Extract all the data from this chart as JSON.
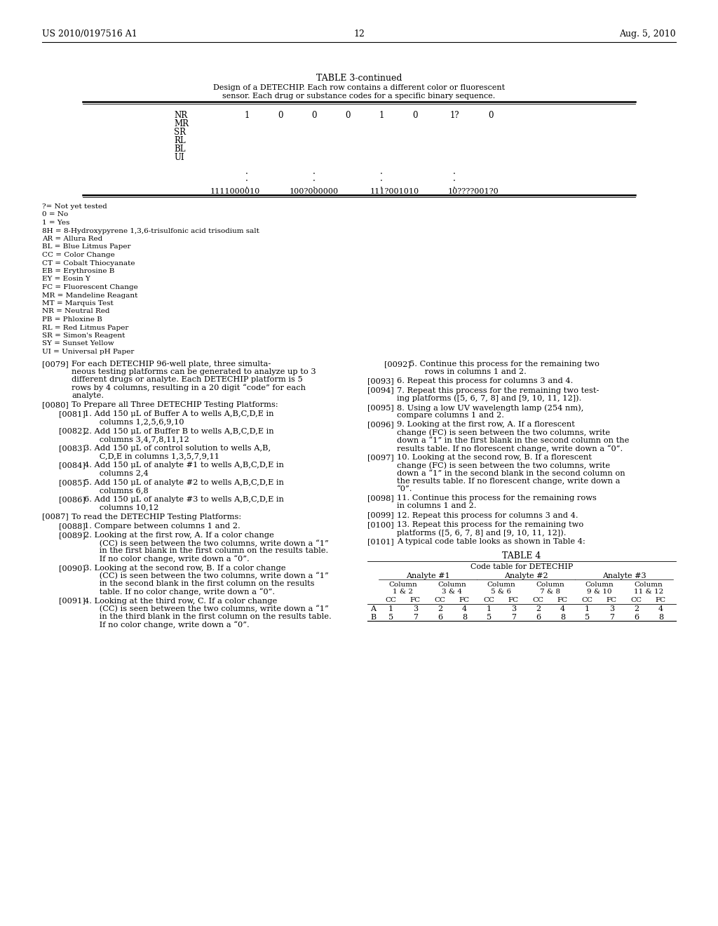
{
  "bg_color": "#ffffff",
  "header_left": "US 2010/0197516 A1",
  "header_right": "Aug. 5, 2010",
  "page_number": "12",
  "table_title": "TABLE 3-continued",
  "table_subtitle1": "Design of a DETECHIP. Each row contains a different color or fluorescent",
  "table_subtitle2": "sensor. Each drug or substance codes for a specific binary sequence.",
  "table_row_labels": [
    "NR",
    "MR",
    "SR",
    "RL",
    "BL",
    "UI"
  ],
  "table_nr_values": [
    "1",
    "0",
    "0",
    "0",
    "1",
    "0",
    "1?",
    "0"
  ],
  "table_binary_codes": [
    "1111000010",
    "100?000000",
    "111?001010",
    "10????001?0"
  ],
  "footnotes": [
    "?= Not yet tested",
    "0 = No",
    "1 = Yes",
    "8H = 8-Hydroxypyrene 1,3,6-trisulfonic acid trisodium salt",
    "AR = Allura Red",
    "BL = Blue Litmus Paper",
    "CC = Color Change",
    "CT = Cobalt Thiocyanate",
    "EB = Erythrosine B",
    "EY = Eosin Y",
    "FC = Fluorescent Change",
    "MR = Mandeline Reagant",
    "MT = Marquis Test",
    "NR = Neutral Red",
    "PB = Phloxine B",
    "RL = Red Litmus Paper",
    "SR = Simon's Reagent",
    "SY = Sunset Yellow",
    "UI = Universal pH Paper"
  ],
  "left_paragraphs": [
    {
      "tag": "[0079]",
      "indent": 0,
      "text": "For each DETECHIP 96-well plate, three simulta-\nneous testing platforms can be generated to analyze up to 3\ndifferent drugs or analyte. Each DETECHIP platform is 5\nrows by 4 columns, resulting in a 20 digit “code” for each\nanalyte."
    },
    {
      "tag": "[0080]",
      "indent": 0,
      "text": "To Prepare all Three DETECHIP Testing Platforms:"
    },
    {
      "tag": "[0081]",
      "indent": 1,
      "text": "1. Add 150 μL of Buffer A to wells A,B,C,D,E in\n      columns 1,2,5,6,9,10"
    },
    {
      "tag": "[0082]",
      "indent": 1,
      "text": "2. Add 150 μL of Buffer B to wells A,B,C,D,E in\n      columns 3,4,7,8,11,12"
    },
    {
      "tag": "[0083]",
      "indent": 1,
      "text": "3. Add 150 μL of control solution to wells A,B,\n      C,D,E in columns 1,3,5,7,9,11"
    },
    {
      "tag": "[0084]",
      "indent": 1,
      "text": "4. Add 150 μL of analyte #1 to wells A,B,C,D,E in\n      columns 2,4"
    },
    {
      "tag": "[0085]",
      "indent": 1,
      "text": "5. Add 150 μL of analyte #2 to wells A,B,C,D,E in\n      columns 6,8"
    },
    {
      "tag": "[0086]",
      "indent": 1,
      "text": "6. Add 150 μL of analyte #3 to wells A,B,C,D,E in\n      columns 10,12"
    },
    {
      "tag": "[0087]",
      "indent": 0,
      "text": "To read the DETECHIP Testing Platforms:"
    },
    {
      "tag": "[0088]",
      "indent": 1,
      "text": "1. Compare between columns 1 and 2."
    },
    {
      "tag": "[0089]",
      "indent": 1,
      "text": "2. Looking at the first row, A. If a color change\n      (CC) is seen between the two columns, write down a “1”\n      in the first blank in the first column on the results table.\n      If no color change, write down a “0”."
    },
    {
      "tag": "[0090]",
      "indent": 1,
      "text": "3. Looking at the second row, B. If a color change\n      (CC) is seen between the two columns, write down a “1”\n      in the second blank in the first column on the results\n      table. If no color change, write down a “0”."
    },
    {
      "tag": "[0091]",
      "indent": 1,
      "text": "4. Looking at the third row, C. If a color change\n      (CC) is seen between the two columns, write down a “1”\n      in the third blank in the first column on the results table.\n      If no color change, write down a “0”."
    }
  ],
  "right_paragraphs": [
    {
      "tag": "[0092]",
      "indent": 1,
      "text": "5. Continue this process for the remaining two\n      rows in columns 1 and 2."
    },
    {
      "tag": "[0093]",
      "indent": 0,
      "text": "6. Repeat this process for columns 3 and 4."
    },
    {
      "tag": "[0094]",
      "indent": 0,
      "text": "7. Repeat this process for the remaining two test-\ning platforms ([5, 6, 7, 8] and [9, 10, 11, 12])."
    },
    {
      "tag": "[0095]",
      "indent": 0,
      "text": "8. Using a low UV wavelength lamp (254 nm),\ncompare columns 1 and 2."
    },
    {
      "tag": "[0096]",
      "indent": 0,
      "text": "9. Looking at the first row, A. If a florescent\nchange (FC) is seen between the two columns, write\ndown a “1” in the first blank in the second column on the\nresults table. If no florescent change, write down a “0”."
    },
    {
      "tag": "[0097]",
      "indent": 0,
      "text": "10. Looking at the second row, B. If a florescent\nchange (FC) is seen between the two columns, write\ndown a “1” in the second blank in the second column on\nthe results table. If no florescent change, write down a\n“0”."
    },
    {
      "tag": "[0098]",
      "indent": 0,
      "text": "11. Continue this process for the remaining rows\nin columns 1 and 2."
    },
    {
      "tag": "[0099]",
      "indent": 0,
      "text": "12. Repeat this process for columns 3 and 4."
    },
    {
      "tag": "[0100]",
      "indent": 0,
      "text": "13. Repeat this process for the remaining two\nplatforms ([5, 6, 7, 8] and [9, 10, 11, 12])."
    },
    {
      "tag": "[0101]",
      "indent": 0,
      "text": "A typical code table looks as shown in Table 4:"
    }
  ],
  "table4_title": "TABLE 4",
  "table4_subtitle": "Code table for DETECHIP",
  "table4_analyte_headers": [
    "Analyte #1",
    "Analyte #2",
    "Analyte #3"
  ],
  "table4_sub_headers": [
    "Column\n1 & 2",
    "Column\n3 & 4",
    "Column\n5 & 6",
    "Column\n7 & 8",
    "Column\n9 & 10",
    "Column\n11 & 12"
  ],
  "table4_cc_fc": [
    "CC",
    "FC",
    "CC",
    "FC",
    "CC",
    "FC",
    "CC",
    "FC",
    "CC",
    "FC",
    "CC",
    "FC"
  ],
  "table4_row_A": [
    "1",
    "3",
    "2",
    "4",
    "1",
    "3",
    "2",
    "4",
    "1",
    "3",
    "2",
    "4"
  ],
  "table4_row_B": [
    "5",
    "7",
    "6",
    "8",
    "5",
    "7",
    "6",
    "8",
    "5",
    "7",
    "6",
    "8"
  ],
  "table4_row_labels": [
    "A",
    "B"
  ]
}
